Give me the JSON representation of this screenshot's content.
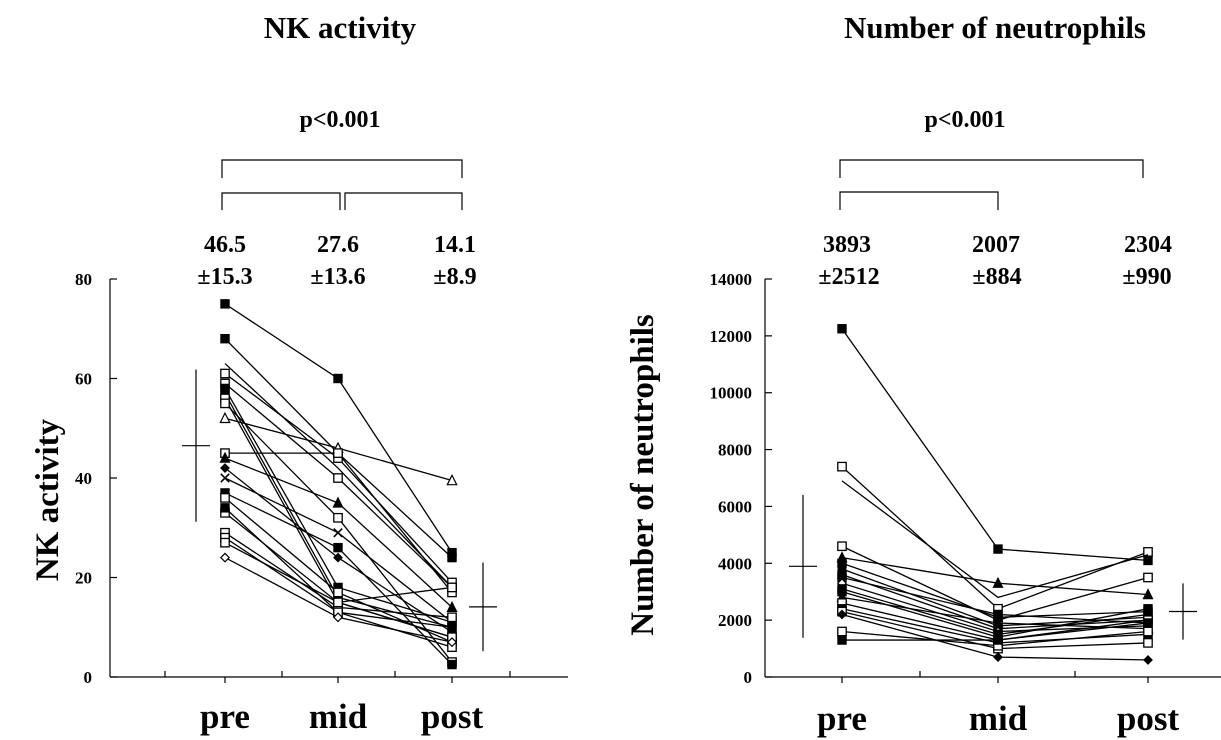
{
  "chart_data": [
    {
      "type": "line",
      "title": "NK activity",
      "ylabel": "NK activity",
      "xlabel": "",
      "categories": [
        "pre",
        "mid",
        "post"
      ],
      "ylim": [
        0,
        80
      ],
      "yticks": [
        0,
        20,
        40,
        60,
        80
      ],
      "grid": false,
      "significance": "p<0.001",
      "means": [
        "46.5",
        "27.6",
        "14.1"
      ],
      "sds": [
        "±15.3",
        "±13.6",
        "±8.9"
      ],
      "mean_values": [
        46.5,
        27.6,
        14.1
      ],
      "sd_values": [
        15.3,
        13.6,
        8.9
      ],
      "series": [
        {
          "values": [
            75,
            60,
            25
          ],
          "marker": "filled-square"
        },
        {
          "values": [
            68,
            45,
            24
          ],
          "marker": "filled-square"
        },
        {
          "values": [
            63,
            42,
            18
          ],
          "marker": "none"
        },
        {
          "values": [
            61,
            44,
            19
          ],
          "marker": "open-square"
        },
        {
          "values": [
            59,
            40,
            18
          ],
          "marker": "open-square"
        },
        {
          "values": [
            58,
            18,
            11
          ],
          "marker": "filled-square"
        },
        {
          "values": [
            57,
            16,
            10
          ],
          "marker": "filled-square"
        },
        {
          "values": [
            56,
            15,
            8
          ],
          "marker": "open-square"
        },
        {
          "values": [
            55,
            32,
            3
          ],
          "marker": "open-square"
        },
        {
          "values": [
            52,
            46,
            39.5
          ],
          "marker": "open-triangle"
        },
        {
          "values": [
            45,
            45,
            17
          ],
          "marker": "open-square"
        },
        {
          "values": [
            44,
            35,
            14
          ],
          "marker": "filled-triangle"
        },
        {
          "values": [
            42,
            24,
            9
          ],
          "marker": "filled-diamond"
        },
        {
          "values": [
            40,
            29,
            11
          ],
          "marker": "cross"
        },
        {
          "values": [
            37,
            26,
            2.5
          ],
          "marker": "filled-square"
        },
        {
          "values": [
            36,
            17,
            7
          ],
          "marker": "open-square"
        },
        {
          "values": [
            33,
            15,
            18
          ],
          "marker": "open-square"
        },
        {
          "values": [
            34,
            13,
            10
          ],
          "marker": "filled-square"
        },
        {
          "values": [
            29,
            14,
            12
          ],
          "marker": "open-square"
        },
        {
          "values": [
            28,
            13,
            6
          ],
          "marker": "open-square"
        },
        {
          "values": [
            27,
            15,
            8
          ],
          "marker": "open-square"
        },
        {
          "values": [
            24,
            12,
            7
          ],
          "marker": "open-diamond"
        }
      ]
    },
    {
      "type": "line",
      "title": "Number of neutrophils",
      "ylabel": "Number of neutrophils",
      "xlabel": "",
      "categories": [
        "pre",
        "mid",
        "post"
      ],
      "ylim": [
        0,
        14000
      ],
      "yticks": [
        0,
        2000,
        4000,
        6000,
        8000,
        10000,
        12000,
        14000
      ],
      "grid": false,
      "significance": "p<0.001",
      "means": [
        "3893",
        "2007",
        "2304"
      ],
      "sds": [
        "±2512",
        "±884",
        "±990"
      ],
      "mean_values": [
        3893,
        2007,
        2304
      ],
      "sd_values": [
        2512,
        884,
        990
      ],
      "series": [
        {
          "values": [
            12250,
            4500,
            4100
          ],
          "marker": "filled-square"
        },
        {
          "values": [
            7400,
            2400,
            4400
          ],
          "marker": "open-square"
        },
        {
          "values": [
            6900,
            2800,
            4300
          ],
          "marker": "none"
        },
        {
          "values": [
            4600,
            2000,
            3500
          ],
          "marker": "open-square"
        },
        {
          "values": [
            4200,
            3300,
            2900
          ],
          "marker": "filled-triangle"
        },
        {
          "values": [
            4000,
            2100,
            2300
          ],
          "marker": "filled-square"
        },
        {
          "values": [
            3800,
            1800,
            2100
          ],
          "marker": "filled-diamond"
        },
        {
          "values": [
            3600,
            1700,
            2000
          ],
          "marker": "filled-square"
        },
        {
          "values": [
            3500,
            2200,
            1900
          ],
          "marker": "filled-square"
        },
        {
          "values": [
            3300,
            1600,
            1800
          ],
          "marker": "open-diamond"
        },
        {
          "values": [
            3100,
            1500,
            2200
          ],
          "marker": "filled-square"
        },
        {
          "values": [
            3000,
            1400,
            2400
          ],
          "marker": "filled-square"
        },
        {
          "values": [
            2800,
            1900,
            1700
          ],
          "marker": "filled-triangle"
        },
        {
          "values": [
            2600,
            1300,
            2000
          ],
          "marker": "open-square"
        },
        {
          "values": [
            2400,
            1200,
            1500
          ],
          "marker": "filled-square"
        },
        {
          "values": [
            2300,
            1000,
            1200
          ],
          "marker": "open-square"
        },
        {
          "values": [
            2200,
            700,
            600
          ],
          "marker": "filled-diamond"
        },
        {
          "values": [
            1600,
            1100,
            1600
          ],
          "marker": "open-square"
        },
        {
          "values": [
            1300,
            1300,
            1900
          ],
          "marker": "filled-square"
        }
      ]
    }
  ]
}
